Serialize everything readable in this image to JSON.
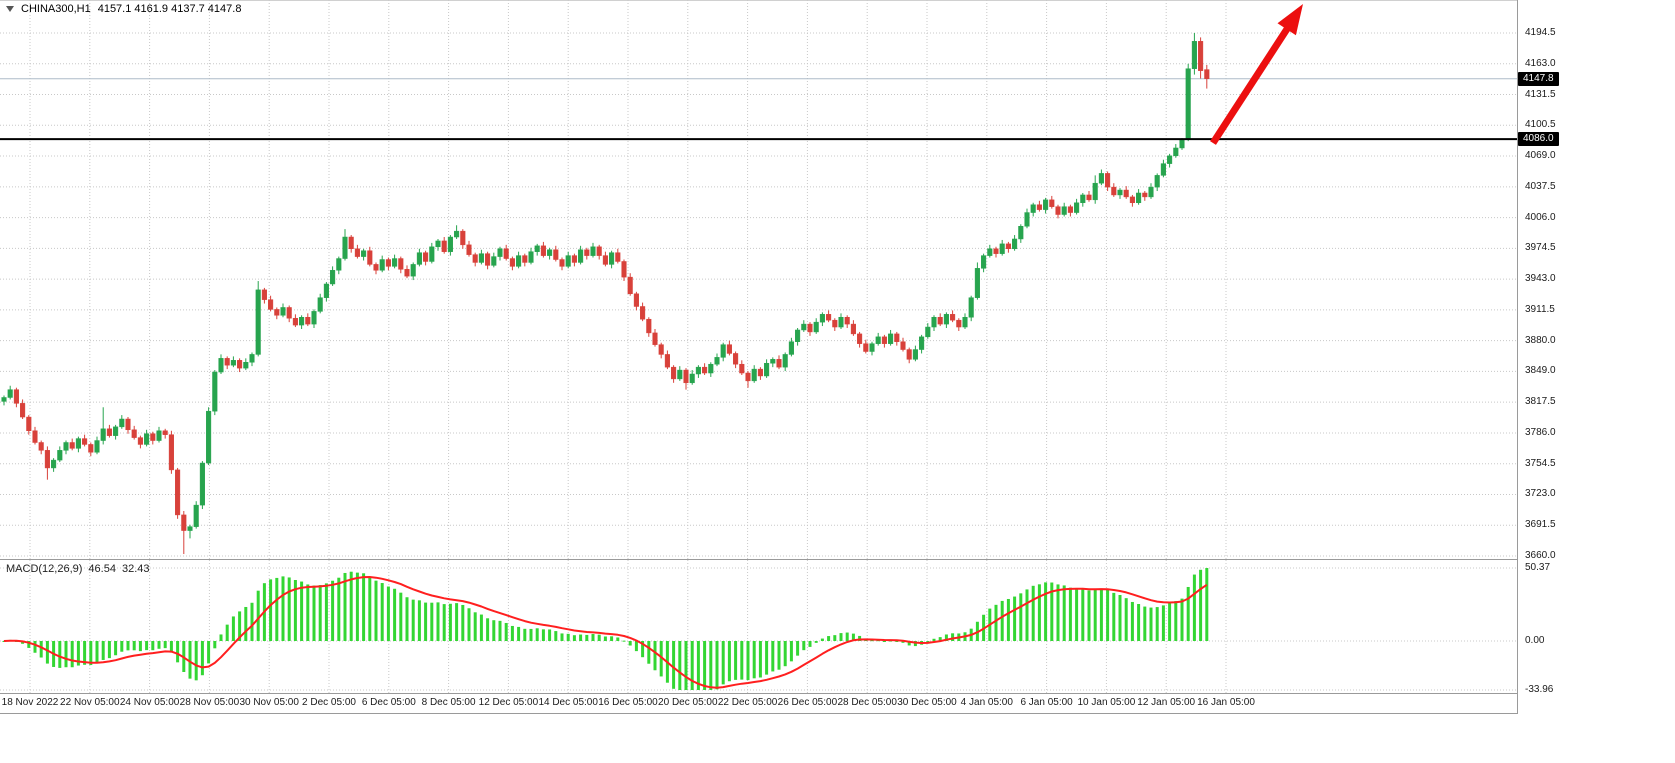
{
  "header": {
    "symbol_period": "CHINA300,H1",
    "ohlc": "4157.1 4161.9 4137.7 4147.8"
  },
  "macd_header": {
    "title": "MACD(12,26,9)",
    "main": "46.54",
    "signal": "32.43"
  },
  "tags": {
    "current": "4147.8",
    "hline": "4086.0"
  },
  "colors": {
    "bull": "#27a44e",
    "bear": "#d8413a",
    "wick_bull": "#1d7a3c",
    "wick_bear": "#a8322d",
    "histogram": "#33d633",
    "signal_line": "#ff1f1f",
    "arrow": "#ec0f0f",
    "hline": "#000000",
    "grid": "#c8c8c8",
    "bid_line": "#aebcc8"
  },
  "chart_data": {
    "type": "candlestick",
    "symbol": "CHINA300",
    "timeframe": "H1",
    "current_bar": {
      "open": 4157.1,
      "high": 4161.9,
      "low": 4137.7,
      "close": 4147.8
    },
    "current_price": 4147.8,
    "hline_price": 4086.0,
    "ylim": [
      3660.0,
      4194.5
    ],
    "price_axis_labels": [
      "4194.5",
      "4163.0",
      "4131.5",
      "4100.5",
      "4069.0",
      "4037.5",
      "4006.0",
      "3974.5",
      "3943.0",
      "3911.5",
      "3880.0",
      "3849.0",
      "3817.5",
      "3786.0",
      "3754.5",
      "3723.0",
      "3691.5",
      "3660.0"
    ],
    "time_axis_labels": [
      "18 Nov 2022",
      "22 Nov 05:00",
      "24 Nov 05:00",
      "28 Nov 05:00",
      "30 Nov 05:00",
      "2 Dec 05:00",
      "6 Dec 05:00",
      "8 Dec 05:00",
      "12 Dec 05:00",
      "14 Dec 05:00",
      "16 Dec 05:00",
      "20 Dec 05:00",
      "22 Dec 05:00",
      "26 Dec 05:00",
      "28 Dec 05:00",
      "30 Dec 05:00",
      "4 Jan 05:00",
      "6 Jan 05:00",
      "10 Jan 05:00",
      "12 Jan 05:00",
      "16 Jan 05:00"
    ],
    "macd": {
      "params": [
        12,
        26,
        9
      ],
      "last_main": 46.54,
      "last_signal": 32.43,
      "axis_labels": [
        "50.37",
        "0.00",
        "-33.96"
      ]
    },
    "candles": [
      [
        3818,
        3824,
        3814,
        3822
      ],
      [
        3822,
        3834,
        3820,
        3830
      ],
      [
        3830,
        3832,
        3812,
        3816
      ],
      [
        3816,
        3820,
        3800,
        3802
      ],
      [
        3802,
        3804,
        3784,
        3788
      ],
      [
        3788,
        3792,
        3774,
        3776
      ],
      [
        3776,
        3778,
        3764,
        3768
      ],
      [
        3768,
        3772,
        3738,
        3750
      ],
      [
        3750,
        3760,
        3746,
        3758
      ],
      [
        3758,
        3772,
        3756,
        3768
      ],
      [
        3768,
        3778,
        3764,
        3776
      ],
      [
        3776,
        3780,
        3768,
        3770
      ],
      [
        3770,
        3782,
        3766,
        3780
      ],
      [
        3780,
        3784,
        3772,
        3774
      ],
      [
        3774,
        3776,
        3762,
        3766
      ],
      [
        3766,
        3782,
        3764,
        3778
      ],
      [
        3778,
        3812,
        3774,
        3790
      ],
      [
        3790,
        3794,
        3781,
        3783
      ],
      [
        3783,
        3794,
        3779,
        3792
      ],
      [
        3792,
        3804,
        3790,
        3800
      ],
      [
        3800,
        3802,
        3785,
        3789
      ],
      [
        3789,
        3793,
        3779,
        3781
      ],
      [
        3781,
        3783,
        3770,
        3774
      ],
      [
        3774,
        3789,
        3772,
        3785
      ],
      [
        3785,
        3787,
        3774,
        3778
      ],
      [
        3778,
        3792,
        3776,
        3788
      ],
      [
        3788,
        3790,
        3780,
        3784
      ],
      [
        3784,
        3788,
        3744,
        3748
      ],
      [
        3748,
        3750,
        3698,
        3702
      ],
      [
        3702,
        3706,
        3662,
        3686
      ],
      [
        3686,
        3692,
        3678,
        3690
      ],
      [
        3690,
        3716,
        3688,
        3712
      ],
      [
        3712,
        3757,
        3708,
        3755
      ],
      [
        3755,
        3812,
        3753,
        3808
      ],
      [
        3808,
        3850,
        3804,
        3848
      ],
      [
        3848,
        3866,
        3846,
        3862
      ],
      [
        3862,
        3864,
        3851,
        3855
      ],
      [
        3855,
        3864,
        3853,
        3860
      ],
      [
        3860,
        3862,
        3848,
        3852
      ],
      [
        3852,
        3862,
        3850,
        3858
      ],
      [
        3858,
        3868,
        3854,
        3866
      ],
      [
        3866,
        3941,
        3864,
        3932
      ],
      [
        3932,
        3934,
        3918,
        3922
      ],
      [
        3922,
        3926,
        3910,
        3912
      ],
      [
        3912,
        3914,
        3902,
        3906
      ],
      [
        3906,
        3918,
        3904,
        3914
      ],
      [
        3914,
        3916,
        3899,
        3903
      ],
      [
        3903,
        3907,
        3894,
        3896
      ],
      [
        3896,
        3906,
        3892,
        3904
      ],
      [
        3904,
        3908,
        3895,
        3897
      ],
      [
        3897,
        3912,
        3893,
        3910
      ],
      [
        3910,
        3928,
        3908,
        3924
      ],
      [
        3924,
        3940,
        3920,
        3938
      ],
      [
        3938,
        3956,
        3936,
        3952
      ],
      [
        3952,
        3966,
        3948,
        3964
      ],
      [
        3964,
        3994,
        3962,
        3986
      ],
      [
        3986,
        3988,
        3970,
        3974
      ],
      [
        3974,
        3978,
        3964,
        3966
      ],
      [
        3966,
        3974,
        3962,
        3972
      ],
      [
        3972,
        3976,
        3956,
        3958
      ],
      [
        3958,
        3960,
        3948,
        3952
      ],
      [
        3952,
        3967,
        3950,
        3963
      ],
      [
        3963,
        3965,
        3952,
        3956
      ],
      [
        3956,
        3968,
        3954,
        3964
      ],
      [
        3964,
        3966,
        3949,
        3953
      ],
      [
        3953,
        3957,
        3944,
        3946
      ],
      [
        3946,
        3960,
        3942,
        3958
      ],
      [
        3958,
        3974,
        3956,
        3970
      ],
      [
        3970,
        3972,
        3957,
        3961
      ],
      [
        3961,
        3980,
        3959,
        3976
      ],
      [
        3976,
        3984,
        3972,
        3982
      ],
      [
        3982,
        3986,
        3969,
        3971
      ],
      [
        3971,
        3988,
        3967,
        3986
      ],
      [
        3986,
        3998,
        3984,
        3992
      ],
      [
        3992,
        3994,
        3974,
        3978
      ],
      [
        3978,
        3982,
        3966,
        3968
      ],
      [
        3968,
        3970,
        3956,
        3960
      ],
      [
        3960,
        3973,
        3958,
        3969
      ],
      [
        3969,
        3971,
        3953,
        3957
      ],
      [
        3957,
        3970,
        3955,
        3966
      ],
      [
        3966,
        3976,
        3962,
        3974
      ],
      [
        3974,
        3978,
        3962,
        3964
      ],
      [
        3964,
        3966,
        3952,
        3956
      ],
      [
        3956,
        3971,
        3954,
        3967
      ],
      [
        3967,
        3969,
        3956,
        3960
      ],
      [
        3960,
        3975,
        3958,
        3971
      ],
      [
        3971,
        3979,
        3967,
        3977
      ],
      [
        3977,
        3981,
        3965,
        3967
      ],
      [
        3967,
        3975,
        3963,
        3973
      ],
      [
        3973,
        3977,
        3961,
        3963
      ],
      [
        3963,
        3965,
        3952,
        3956
      ],
      [
        3956,
        3971,
        3954,
        3967
      ],
      [
        3967,
        3969,
        3956,
        3960
      ],
      [
        3960,
        3977,
        3958,
        3973
      ],
      [
        3973,
        3975,
        3963,
        3967
      ],
      [
        3967,
        3980,
        3965,
        3976
      ],
      [
        3976,
        3978,
        3963,
        3967
      ],
      [
        3967,
        3971,
        3956,
        3958
      ],
      [
        3958,
        3972,
        3954,
        3970
      ],
      [
        3970,
        3974,
        3959,
        3961
      ],
      [
        3961,
        3963,
        3941,
        3945
      ],
      [
        3945,
        3949,
        3926,
        3928
      ],
      [
        3928,
        3930,
        3911,
        3915
      ],
      [
        3915,
        3919,
        3900,
        3902
      ],
      [
        3902,
        3904,
        3884,
        3888
      ],
      [
        3888,
        3892,
        3874,
        3876
      ],
      [
        3876,
        3878,
        3862,
        3866
      ],
      [
        3866,
        3870,
        3851,
        3853
      ],
      [
        3853,
        3855,
        3837,
        3841
      ],
      [
        3841,
        3854,
        3839,
        3850
      ],
      [
        3850,
        3852,
        3830,
        3837
      ],
      [
        3837,
        3850,
        3835,
        3846
      ],
      [
        3846,
        3855,
        3842,
        3853
      ],
      [
        3853,
        3857,
        3845,
        3847
      ],
      [
        3847,
        3858,
        3843,
        3856
      ],
      [
        3856,
        3867,
        3854,
        3863
      ],
      [
        3863,
        3878,
        3859,
        3876
      ],
      [
        3876,
        3880,
        3865,
        3867
      ],
      [
        3867,
        3869,
        3852,
        3856
      ],
      [
        3856,
        3860,
        3845,
        3847
      ],
      [
        3847,
        3849,
        3832,
        3839
      ],
      [
        3839,
        3855,
        3837,
        3851
      ],
      [
        3851,
        3853,
        3840,
        3844
      ],
      [
        3844,
        3861,
        3842,
        3857
      ],
      [
        3857,
        3863,
        3853,
        3861
      ],
      [
        3861,
        3865,
        3851,
        3853
      ],
      [
        3853,
        3868,
        3849,
        3866
      ],
      [
        3866,
        3883,
        3864,
        3879
      ],
      [
        3879,
        3893,
        3875,
        3891
      ],
      [
        3891,
        3901,
        3889,
        3897
      ],
      [
        3897,
        3899,
        3885,
        3889
      ],
      [
        3889,
        3903,
        3887,
        3899
      ],
      [
        3899,
        3909,
        3895,
        3907
      ],
      [
        3907,
        3911,
        3899,
        3901
      ],
      [
        3901,
        3903,
        3890,
        3894
      ],
      [
        3894,
        3908,
        3892,
        3904
      ],
      [
        3904,
        3906,
        3893,
        3897
      ],
      [
        3897,
        3901,
        3885,
        3887
      ],
      [
        3887,
        3889,
        3873,
        3877
      ],
      [
        3877,
        3881,
        3867,
        3869
      ],
      [
        3869,
        3879,
        3865,
        3877
      ],
      [
        3877,
        3888,
        3875,
        3884
      ],
      [
        3884,
        3886,
        3873,
        3877
      ],
      [
        3877,
        3891,
        3875,
        3887
      ],
      [
        3887,
        3889,
        3875,
        3879
      ],
      [
        3879,
        3883,
        3869,
        3871
      ],
      [
        3871,
        3873,
        3857,
        3861
      ],
      [
        3861,
        3875,
        3859,
        3871
      ],
      [
        3871,
        3886,
        3867,
        3884
      ],
      [
        3884,
        3898,
        3882,
        3894
      ],
      [
        3894,
        3906,
        3890,
        3904
      ],
      [
        3904,
        3908,
        3895,
        3897
      ],
      [
        3897,
        3909,
        3893,
        3907
      ],
      [
        3907,
        3911,
        3899,
        3901
      ],
      [
        3901,
        3903,
        3890,
        3894
      ],
      [
        3894,
        3908,
        3892,
        3904
      ],
      [
        3904,
        3926,
        3900,
        3924
      ],
      [
        3924,
        3960,
        3922,
        3954
      ],
      [
        3954,
        3969,
        3950,
        3967
      ],
      [
        3967,
        3978,
        3965,
        3974
      ],
      [
        3974,
        3976,
        3965,
        3969
      ],
      [
        3969,
        3983,
        3967,
        3979
      ],
      [
        3979,
        3981,
        3970,
        3974
      ],
      [
        3974,
        3988,
        3972,
        3984
      ],
      [
        3984,
        3999,
        3980,
        3997
      ],
      [
        3997,
        4015,
        3995,
        4011
      ],
      [
        4011,
        4021,
        4007,
        4019
      ],
      [
        4019,
        4023,
        4012,
        4014
      ],
      [
        4014,
        4026,
        4010,
        4024
      ],
      [
        4024,
        4028,
        4015,
        4017
      ],
      [
        4017,
        4019,
        4005,
        4009
      ],
      [
        4009,
        4021,
        4007,
        4017
      ],
      [
        4017,
        4019,
        4007,
        4011
      ],
      [
        4011,
        4025,
        4009,
        4021
      ],
      [
        4021,
        4031,
        4017,
        4029
      ],
      [
        4029,
        4033,
        4022,
        4024
      ],
      [
        4024,
        4049,
        4020,
        4041
      ],
      [
        4041,
        4055,
        4039,
        4051
      ],
      [
        4051,
        4053,
        4033,
        4037
      ],
      [
        4037,
        4041,
        4027,
        4029
      ],
      [
        4029,
        4036,
        4025,
        4034
      ],
      [
        4034,
        4038,
        4025,
        4027
      ],
      [
        4027,
        4029,
        4017,
        4021
      ],
      [
        4021,
        4035,
        4019,
        4031
      ],
      [
        4031,
        4033,
        4023,
        4027
      ],
      [
        4027,
        4041,
        4025,
        4037
      ],
      [
        4037,
        4051,
        4033,
        4049
      ],
      [
        4049,
        4065,
        4047,
        4061
      ],
      [
        4061,
        4071,
        4057,
        4069
      ],
      [
        4069,
        4081,
        4067,
        4077
      ],
      [
        4077,
        4087,
        4075,
        4085
      ],
      [
        4086,
        4163,
        4084,
        4158
      ],
      [
        4158,
        4194.5,
        4152,
        4186
      ],
      [
        4186,
        4190,
        4148,
        4156
      ],
      [
        4157.1,
        4161.9,
        4137.7,
        4147.8
      ]
    ]
  }
}
